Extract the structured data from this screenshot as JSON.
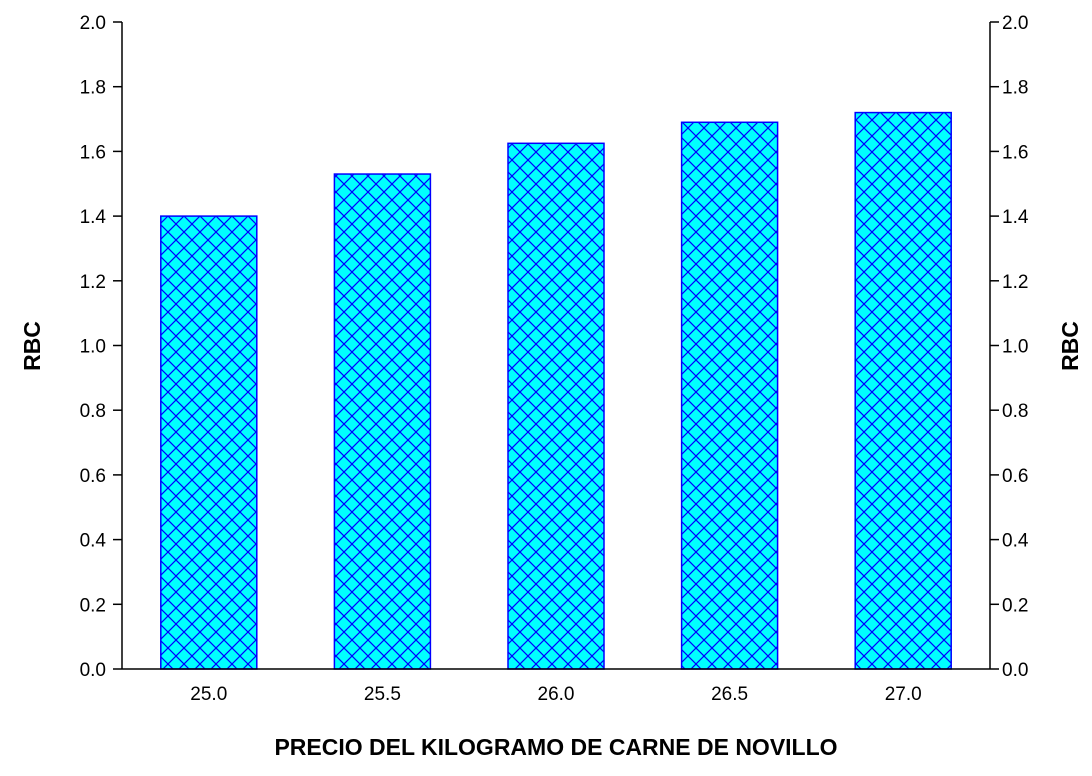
{
  "chart_data": {
    "type": "bar",
    "categories": [
      "25.0",
      "25.5",
      "26.0",
      "26.5",
      "27.0"
    ],
    "values": [
      1.4,
      1.53,
      1.625,
      1.69,
      1.72
    ],
    "title": "",
    "xlabel": "PRECIO DEL KILOGRAMO DE CARNE DE NOVILLO",
    "ylabel": "RBC",
    "ylabel_right": "RBC",
    "ylim": [
      0.0,
      2.0
    ],
    "yticks": [
      "0.0",
      "0.2",
      "0.4",
      "0.6",
      "0.8",
      "1.0",
      "1.2",
      "1.4",
      "1.6",
      "1.8",
      "2.0"
    ],
    "grid": false,
    "legend": "none",
    "bar_fill": "cross-hatch",
    "colors": {
      "bar_fill": "#00ffff",
      "bar_edge": "#0000ff",
      "hatch": "#0000ff",
      "axis": "#000000",
      "text": "#000000"
    }
  }
}
